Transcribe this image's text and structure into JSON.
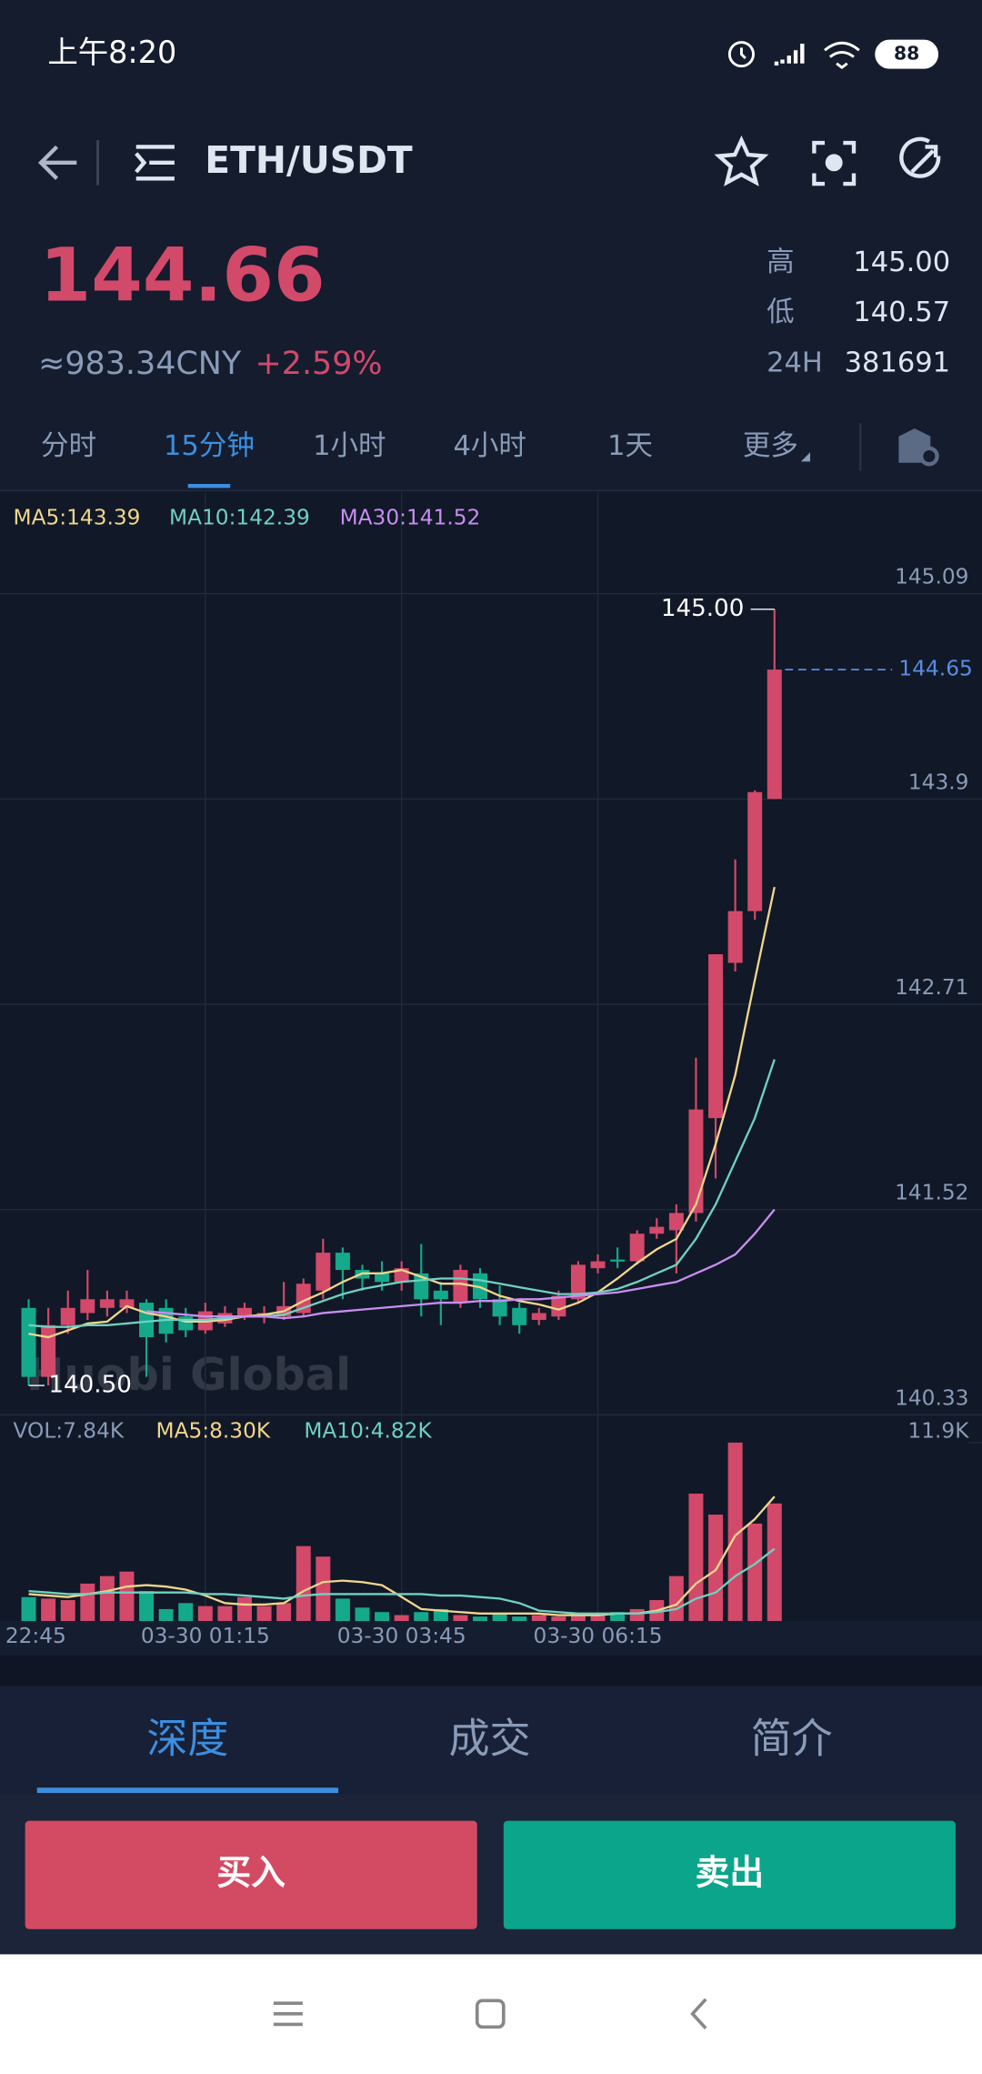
{
  "status_bar": {
    "time": "上午8:20",
    "battery": "88"
  },
  "header": {
    "pair": "ETH/USDT"
  },
  "ticker": {
    "price": "144.66",
    "cny": "≈983.34CNY",
    "change": "+2.59%",
    "stats": [
      {
        "label": "高",
        "value": "145.00"
      },
      {
        "label": "低",
        "value": "140.57"
      },
      {
        "label": "24H",
        "value": "381691"
      }
    ]
  },
  "tabs": {
    "items": [
      "分时",
      "15分钟",
      "1小时",
      "4小时",
      "1天",
      "更多"
    ],
    "active": 1
  },
  "chart_data": {
    "type": "candlestick",
    "up_color": "#d2496a",
    "down_color": "#14a98b",
    "grid": true,
    "ylim": [
      140.33,
      145.68
    ],
    "yticks": [
      145.09,
      143.9,
      142.71,
      141.52,
      140.33
    ],
    "categories": [
      "22:45",
      null,
      null,
      null,
      null,
      null,
      null,
      null,
      null,
      "03-30 01:15",
      null,
      null,
      null,
      null,
      null,
      null,
      null,
      null,
      null,
      "03-30 03:45",
      null,
      null,
      null,
      null,
      null,
      null,
      null,
      null,
      null,
      "03-30 06:15",
      null,
      null,
      null,
      null,
      null,
      null,
      null,
      null,
      null
    ],
    "ohlc": [
      [
        140.95,
        141.0,
        140.5,
        140.55
      ],
      [
        140.55,
        140.95,
        140.5,
        140.85
      ],
      [
        140.85,
        141.05,
        140.8,
        140.95
      ],
      [
        140.92,
        141.17,
        140.88,
        141.0
      ],
      [
        140.95,
        141.05,
        140.9,
        141.0
      ],
      [
        140.95,
        141.05,
        140.92,
        141.0
      ],
      [
        140.98,
        141.0,
        140.55,
        140.78
      ],
      [
        140.95,
        141.0,
        140.75,
        140.8
      ],
      [
        140.9,
        140.95,
        140.78,
        140.82
      ],
      [
        140.82,
        140.98,
        140.8,
        140.93
      ],
      [
        140.86,
        140.96,
        140.84,
        140.92
      ],
      [
        140.9,
        140.98,
        140.88,
        140.95
      ],
      [
        140.9,
        140.96,
        140.86,
        140.92
      ],
      [
        140.9,
        141.1,
        140.88,
        140.96
      ],
      [
        140.92,
        141.12,
        140.9,
        141.09
      ],
      [
        141.05,
        141.35,
        141.0,
        141.27
      ],
      [
        141.27,
        141.3,
        141.0,
        141.17
      ],
      [
        141.17,
        141.2,
        141.05,
        141.12
      ],
      [
        141.15,
        141.22,
        141.05,
        141.1
      ],
      [
        141.1,
        141.22,
        141.05,
        141.18
      ],
      [
        141.15,
        141.32,
        140.9,
        141.0
      ],
      [
        141.05,
        141.1,
        140.85,
        141.0
      ],
      [
        140.98,
        141.2,
        140.95,
        141.17
      ],
      [
        141.15,
        141.18,
        140.95,
        141.0
      ],
      [
        141.0,
        141.08,
        140.85,
        140.9
      ],
      [
        140.95,
        140.98,
        140.8,
        140.85
      ],
      [
        140.88,
        140.95,
        140.85,
        140.92
      ],
      [
        140.9,
        141.05,
        140.88,
        141.02
      ],
      [
        141.0,
        141.22,
        140.98,
        141.2
      ],
      [
        141.18,
        141.26,
        141.15,
        141.22
      ],
      [
        141.23,
        141.3,
        141.18,
        141.22
      ],
      [
        141.22,
        141.4,
        141.2,
        141.38
      ],
      [
        141.38,
        141.47,
        141.35,
        141.42
      ],
      [
        141.4,
        141.55,
        141.15,
        141.5
      ],
      [
        141.5,
        142.4,
        141.45,
        142.1
      ],
      [
        142.05,
        143.0,
        141.7,
        143.0
      ],
      [
        142.95,
        143.55,
        142.9,
        143.25
      ],
      [
        143.25,
        143.95,
        143.2,
        143.94
      ],
      [
        143.9,
        145.0,
        143.9,
        144.65
      ]
    ],
    "ma_series": [
      {
        "label": "MA5:143.39",
        "color": "#f1d58c",
        "values": [
          140.8,
          140.78,
          140.82,
          140.86,
          140.87,
          140.96,
          140.92,
          140.9,
          140.87,
          140.87,
          140.88,
          140.9,
          140.91,
          140.93,
          140.99,
          141.04,
          141.1,
          141.15,
          141.15,
          141.17,
          141.13,
          141.09,
          141.09,
          141.07,
          141.02,
          140.99,
          140.97,
          140.94,
          140.98,
          141.04,
          141.12,
          141.21,
          141.29,
          141.35,
          141.55,
          141.9,
          142.3,
          142.85,
          143.39
        ]
      },
      {
        "label": "MA10:142.39",
        "color": "#6fd1c0",
        "values": [
          140.85,
          140.84,
          140.84,
          140.85,
          140.85,
          140.86,
          140.87,
          140.88,
          140.88,
          140.88,
          140.89,
          140.9,
          140.9,
          140.91,
          140.95,
          140.99,
          141.03,
          141.06,
          141.08,
          141.1,
          141.11,
          141.12,
          141.12,
          141.11,
          141.09,
          141.07,
          141.05,
          141.03,
          141.03,
          141.04,
          141.06,
          141.1,
          141.15,
          141.2,
          141.35,
          141.55,
          141.8,
          142.05,
          142.39
        ]
      },
      {
        "label": "MA30:141.52",
        "color": "#c88df0",
        "values": [
          null,
          null,
          null,
          null,
          null,
          null,
          140.93,
          140.92,
          140.91,
          140.9,
          140.9,
          140.9,
          140.9,
          140.89,
          140.9,
          140.92,
          140.93,
          140.94,
          140.95,
          140.96,
          140.97,
          140.98,
          140.98,
          140.99,
          140.99,
          141.0,
          141.0,
          141.01,
          141.02,
          141.03,
          141.04,
          141.06,
          141.08,
          141.1,
          141.15,
          141.2,
          141.26,
          141.38,
          141.52
        ]
      }
    ],
    "high_marker": {
      "value": 145.0,
      "label": "145.00"
    },
    "low_marker": {
      "value": 140.5,
      "label": "140.50"
    },
    "last_price": 144.65,
    "watermark": "Huobi Global",
    "volume": {
      "legend": "VOL:7.84K",
      "ylim": [
        0,
        11.9
      ],
      "yticks": [
        {
          "value": 11.9,
          "label": "11.9K"
        }
      ],
      "values": [
        1.6,
        1.5,
        1.4,
        2.5,
        3.0,
        3.3,
        2.0,
        0.8,
        1.2,
        1.0,
        1.0,
        1.6,
        1.0,
        1.2,
        5.0,
        4.3,
        1.5,
        0.9,
        0.6,
        0.4,
        0.6,
        0.8,
        0.4,
        0.3,
        0.5,
        0.3,
        0.4,
        0.3,
        0.5,
        0.5,
        0.6,
        0.8,
        1.4,
        3.0,
        8.5,
        7.1,
        11.9,
        6.5,
        7.84
      ],
      "ma_series": [
        {
          "label": "MA5:8.30K",
          "color": "#f1d58c",
          "values": [
            1.8,
            1.7,
            1.6,
            1.8,
            2.0,
            2.3,
            2.4,
            2.3,
            2.1,
            1.7,
            1.2,
            1.1,
            1.1,
            1.2,
            2.0,
            2.6,
            2.7,
            2.6,
            2.4,
            1.6,
            0.8,
            0.7,
            0.6,
            0.5,
            0.5,
            0.5,
            0.5,
            0.4,
            0.4,
            0.4,
            0.5,
            0.5,
            0.7,
            1.1,
            2.5,
            3.4,
            5.7,
            6.8,
            8.3
          ]
        },
        {
          "label": "MA10:4.82K",
          "color": "#6fd1c0",
          "values": [
            2.0,
            1.9,
            1.8,
            1.8,
            1.9,
            1.9,
            1.9,
            1.9,
            1.9,
            1.8,
            1.8,
            1.7,
            1.6,
            1.5,
            1.7,
            1.8,
            1.8,
            1.8,
            1.8,
            1.8,
            1.8,
            1.7,
            1.7,
            1.6,
            1.5,
            1.2,
            0.7,
            0.6,
            0.5,
            0.5,
            0.5,
            0.5,
            0.6,
            0.8,
            1.5,
            1.9,
            3.0,
            3.8,
            4.82
          ]
        }
      ]
    }
  },
  "bottom_tabs": {
    "items": [
      "深度",
      "成交",
      "简介"
    ],
    "active": 0
  },
  "actions": {
    "buy": "买入",
    "sell": "卖出"
  }
}
